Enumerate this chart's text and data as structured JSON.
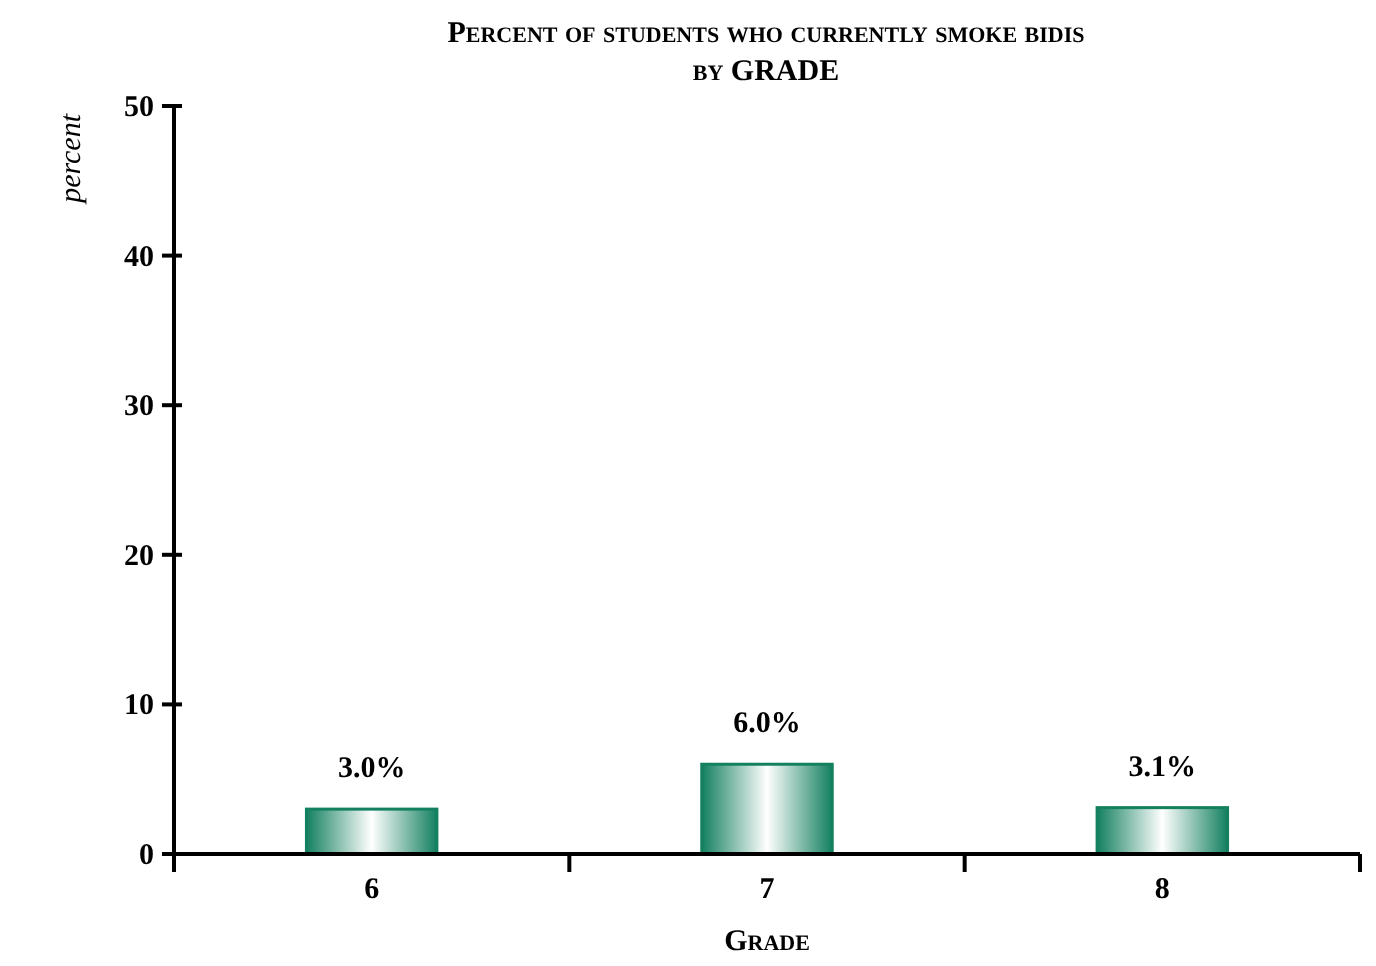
{
  "chart_data": {
    "type": "bar",
    "title": "Percent of students who currently smoke bidis",
    "subtitle": "by GRADE",
    "xlabel": "Grade",
    "ylabel": "percent",
    "categories": [
      "6",
      "7",
      "8"
    ],
    "values": [
      3.0,
      6.0,
      3.1
    ],
    "value_labels": [
      "3.0%",
      "6.0%",
      "3.1%"
    ],
    "color": "#13805f",
    "ylim": [
      0,
      50
    ],
    "yticks": [
      0,
      10,
      20,
      30,
      40,
      50
    ],
    "grid": false
  }
}
